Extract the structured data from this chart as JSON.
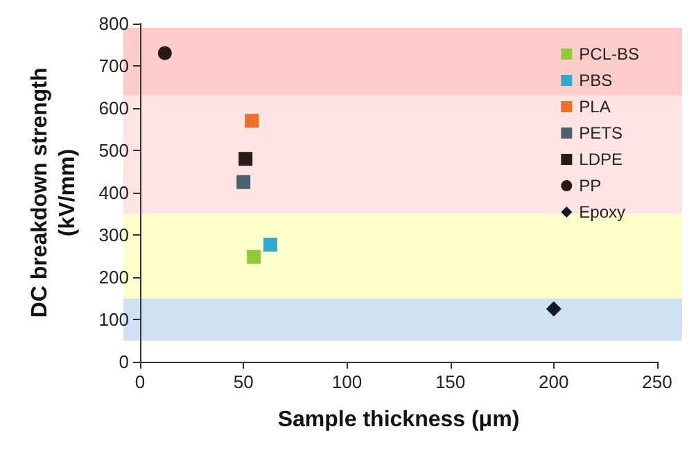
{
  "chart_data": {
    "type": "scatter",
    "xlabel": "Sample thickness (μm)",
    "ylabel": "DC breakdown strength\n(kV/mm)",
    "xlim": [
      0,
      250
    ],
    "xticks": [
      0,
      50,
      100,
      150,
      200,
      250
    ],
    "ylim": [
      0,
      800
    ],
    "yticks": [
      0,
      100,
      200,
      300,
      400,
      500,
      600,
      700,
      800
    ],
    "grid": false,
    "legend": "top right",
    "series": [
      {
        "name": "PCL-BS",
        "color": "#94c83c",
        "marker": "square",
        "x": [
          55
        ],
        "values": [
          248
        ]
      },
      {
        "name": "PBS",
        "color": "#30a8d0",
        "marker": "square",
        "x": [
          63
        ],
        "values": [
          277
        ]
      },
      {
        "name": "PLA",
        "color": "#e8702a",
        "marker": "square",
        "x": [
          54
        ],
        "values": [
          570
        ]
      },
      {
        "name": "PETS",
        "color": "#4d5e6e",
        "marker": "square",
        "x": [
          50
        ],
        "values": [
          425
        ]
      },
      {
        "name": "LDPE",
        "color": "#2b1a1a",
        "marker": "square",
        "x": [
          51
        ],
        "values": [
          480
        ]
      },
      {
        "name": "PP",
        "color": "#2b1515",
        "marker": "circle",
        "x": [
          12
        ],
        "values": [
          730
        ]
      },
      {
        "name": "Epoxy",
        "color": "#111a2a",
        "marker": "diamond",
        "x": [
          200
        ],
        "values": [
          125
        ]
      }
    ],
    "bands": [
      {
        "axis": "y",
        "from": 50,
        "to": 150,
        "color": "#cfe2f3"
      },
      {
        "axis": "y",
        "from": 150,
        "to": 350,
        "color": "#ffffcc"
      },
      {
        "axis": "y",
        "from": 350,
        "to": 630,
        "color": "#ffe4e4"
      },
      {
        "axis": "y",
        "from": 630,
        "to": 790,
        "color": "#ffcccc"
      }
    ]
  }
}
